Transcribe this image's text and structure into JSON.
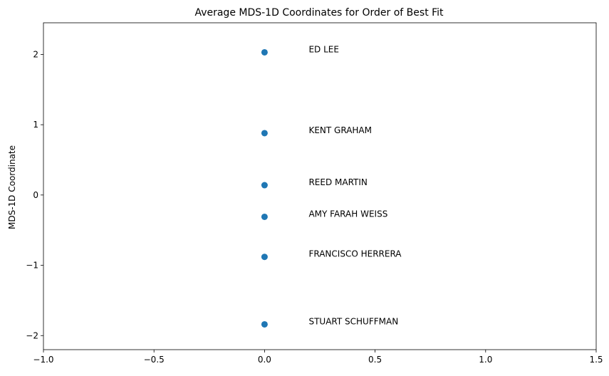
{
  "chart_data": {
    "type": "scatter",
    "title": "Average MDS-1D Coordinates for Order of Best Fit",
    "xlabel": "",
    "ylabel": "MDS-1D Coordinate",
    "xlim": [
      -1.0,
      1.5
    ],
    "ylim": [
      -2.2,
      2.45
    ],
    "x_ticks": [
      -1.0,
      -0.5,
      0.0,
      0.5,
      1.0,
      1.5
    ],
    "x_tick_labels": [
      "−1.0",
      "−0.5",
      "0.0",
      "0.5",
      "1.0",
      "1.5"
    ],
    "y_ticks": [
      -2,
      -1,
      0,
      1,
      2
    ],
    "y_tick_labels": [
      "−2",
      "−1",
      "0",
      "1",
      "2"
    ],
    "grid": false,
    "marker_color": "#1f77b4",
    "label_x_offset": 0.2,
    "points": [
      {
        "label": "ED LEE",
        "x": 0.0,
        "y": 2.03
      },
      {
        "label": "KENT GRAHAM",
        "x": 0.0,
        "y": 0.88
      },
      {
        "label": "REED MARTIN",
        "x": 0.0,
        "y": 0.14
      },
      {
        "label": "AMY FARAH WEISS",
        "x": 0.0,
        "y": -0.31
      },
      {
        "label": "FRANCISCO HERRERA",
        "x": 0.0,
        "y": -0.88
      },
      {
        "label": "STUART SCHUFFMAN",
        "x": 0.0,
        "y": -1.84
      }
    ]
  }
}
